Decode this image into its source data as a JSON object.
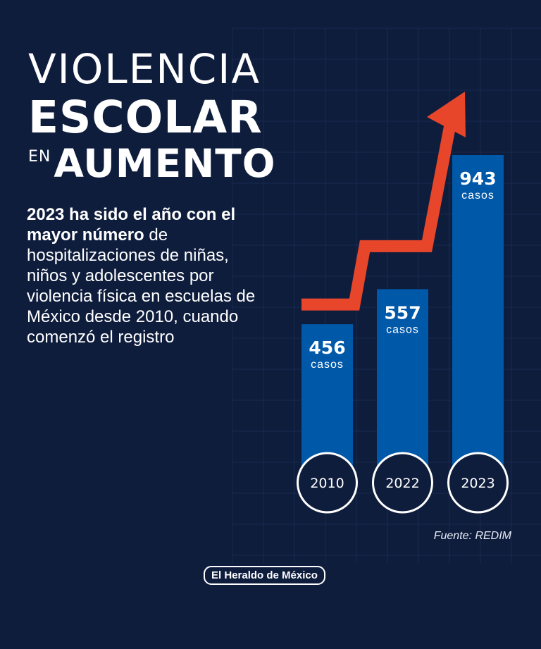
{
  "title": {
    "line1": "VIOLENCIA",
    "line2": "ESCOLAR",
    "line3_small": "EN",
    "line3_big": "AUMENTO"
  },
  "intro": {
    "bold": "2023 ha sido el año con el mayor número",
    "rest": " de hospitalizaciones de niñas, niños y adolescentes por violencia física en escuelas de México desde 2010, cuando comenzó el registro"
  },
  "chart_data": {
    "type": "bar",
    "categories": [
      "2010",
      "2022",
      "2023"
    ],
    "values": [
      456,
      557,
      943
    ],
    "value_unit": "casos",
    "ylim": [
      0,
      943
    ],
    "grid": true,
    "trend_arrow": true,
    "colors": {
      "bar": "#0058a8",
      "arrow": "#e8462a",
      "background": "#0f1d3d"
    }
  },
  "source": "Fuente: REDIM",
  "brand": "El Heraldo de México"
}
